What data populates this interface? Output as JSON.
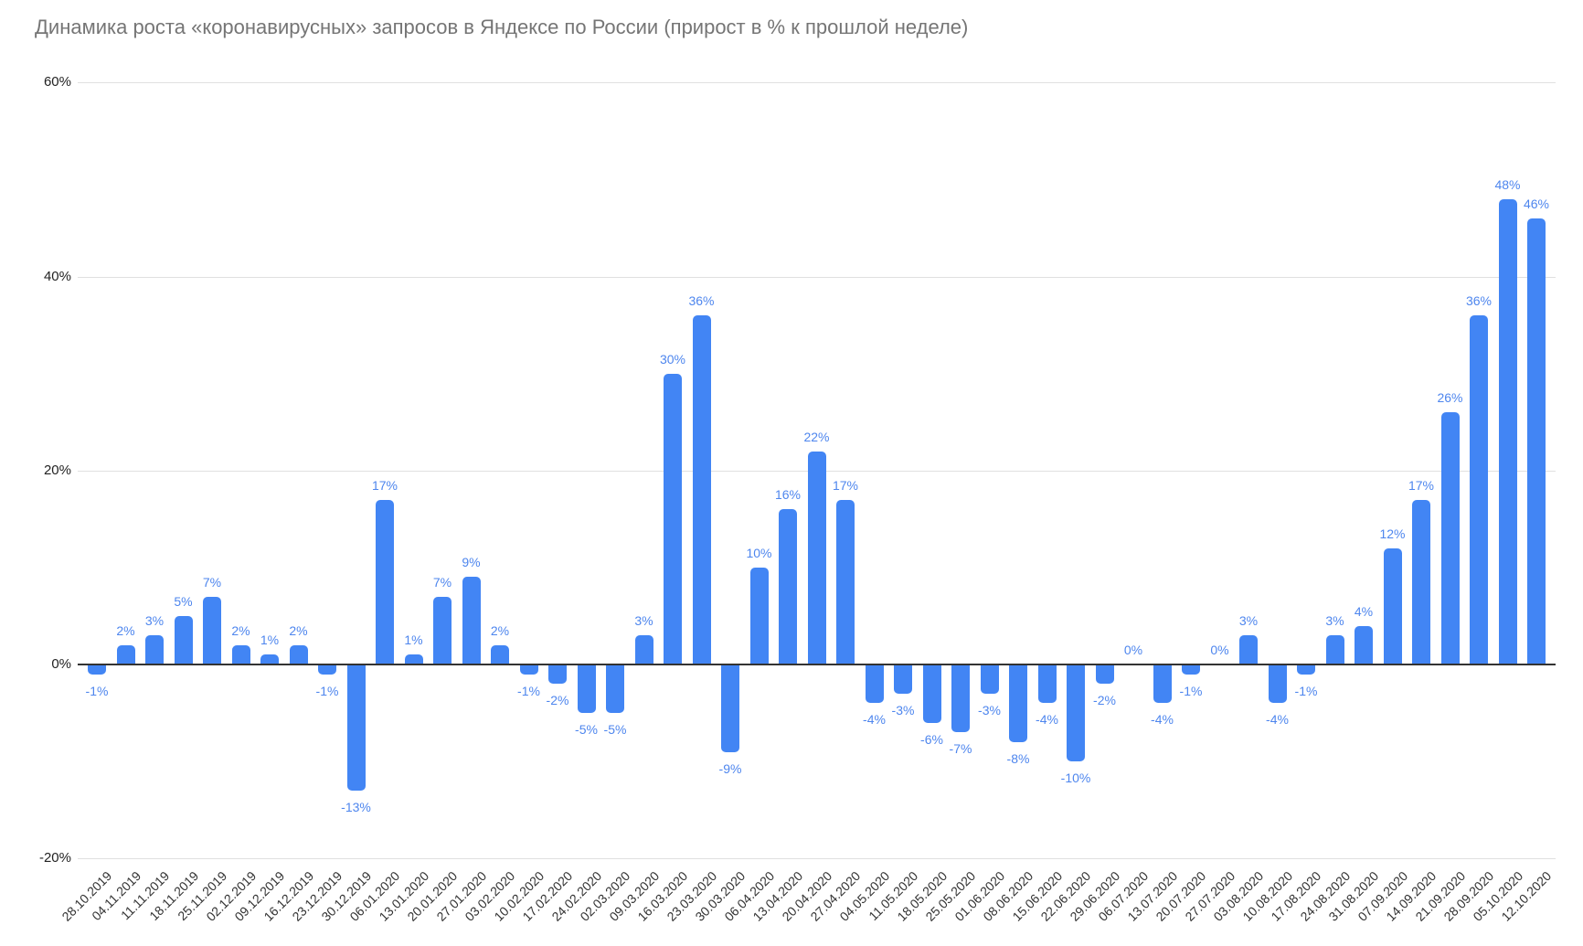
{
  "chart_data": {
    "type": "bar",
    "title": "Динамика роста «коронавирусных» запросов в Яндексе по России (прирост в % к прошлой неделе)",
    "xlabel": "",
    "ylabel": "",
    "ylim": [
      -20,
      60
    ],
    "grid": true,
    "legend": false,
    "value_suffix": "%",
    "y_ticks": [
      {
        "value": 60,
        "label": "60%"
      },
      {
        "value": 40,
        "label": "40%"
      },
      {
        "value": 20,
        "label": "20%"
      },
      {
        "value": 0,
        "label": "0%"
      },
      {
        "value": -20,
        "label": "-20%"
      }
    ],
    "categories": [
      "28.10.2019",
      "04.11.2019",
      "11.11.2019",
      "18.11.2019",
      "25.11.2019",
      "02.12.2019",
      "09.12.2019",
      "16.12.2019",
      "23.12.2019",
      "30.12.2019",
      "06.01.2020",
      "13.01.2020",
      "20.01.2020",
      "27.01.2020",
      "03.02.2020",
      "10.02.2020",
      "17.02.2020",
      "24.02.2020",
      "02.03.2020",
      "09.03.2020",
      "16.03.2020",
      "23.03.2020",
      "30.03.2020",
      "06.04.2020",
      "13.04.2020",
      "20.04.2020",
      "27.04.2020",
      "04.05.2020",
      "11.05.2020",
      "18.05.2020",
      "25.05.2020",
      "01.06.2020",
      "08.06.2020",
      "15.06.2020",
      "22.06.2020",
      "29.06.2020",
      "06.07.2020",
      "13.07.2020",
      "20.07.2020",
      "27.07.2020",
      "03.08.2020",
      "10.08.2020",
      "17.08.2020",
      "24.08.2020",
      "31.08.2020",
      "07.09.2020",
      "14.09.2020",
      "21.09.2020",
      "28.09.2020",
      "05.10.2020",
      "12.10.2020"
    ],
    "values": [
      -1,
      2,
      3,
      5,
      7,
      2,
      1,
      2,
      -1,
      -13,
      17,
      1,
      7,
      9,
      2,
      -1,
      -2,
      -5,
      -5,
      3,
      30,
      36,
      -9,
      10,
      16,
      22,
      17,
      -4,
      -3,
      -6,
      -7,
      -3,
      -8,
      -4,
      -10,
      -2,
      0,
      -4,
      -1,
      0,
      3,
      -4,
      -1,
      3,
      4,
      12,
      17,
      26,
      36,
      48,
      46
    ],
    "colors": {
      "bar": "#4285f4",
      "data_label": "#4e86ee",
      "title": "#757575",
      "axis_text": "#222222",
      "x_axis_text": "#333333",
      "gridline": "#e0e0e0",
      "zero_line": "#333333",
      "background": "#ffffff"
    }
  }
}
